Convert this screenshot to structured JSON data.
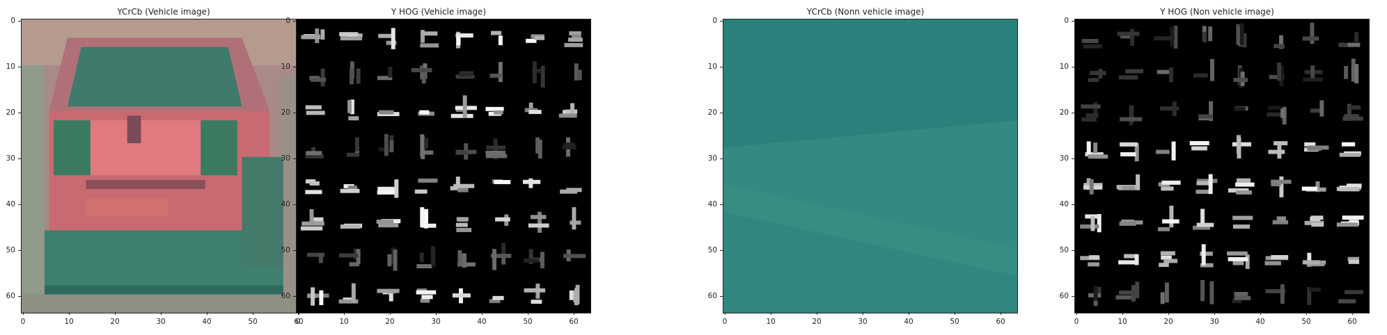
{
  "panels": [
    {
      "title": "YCrCb (Vehicle image)",
      "kind": "vehicle-ycrcb"
    },
    {
      "title": "Y HOG (Vehicle image)",
      "kind": "vehicle-hog"
    },
    {
      "title": "YCrCb (Nonn vehicle image)",
      "kind": "nonvehicle-ycrcb"
    },
    {
      "title": "Y HOG (Non vehicle image)",
      "kind": "nonvehicle-hog"
    }
  ],
  "axis": {
    "x_ticks": [
      "0",
      "10",
      "20",
      "30",
      "40",
      "50",
      "60"
    ],
    "y_ticks": [
      "0",
      "10",
      "20",
      "30",
      "40",
      "50",
      "60"
    ],
    "range": [
      0,
      64
    ]
  },
  "colors": {
    "hog_background": "#000000",
    "vehicle_body": "#c86a72",
    "vehicle_taillight": "#e07a7e",
    "vehicle_window": "#3f7a6c",
    "nonvehicle_base": "#2c8480"
  }
}
